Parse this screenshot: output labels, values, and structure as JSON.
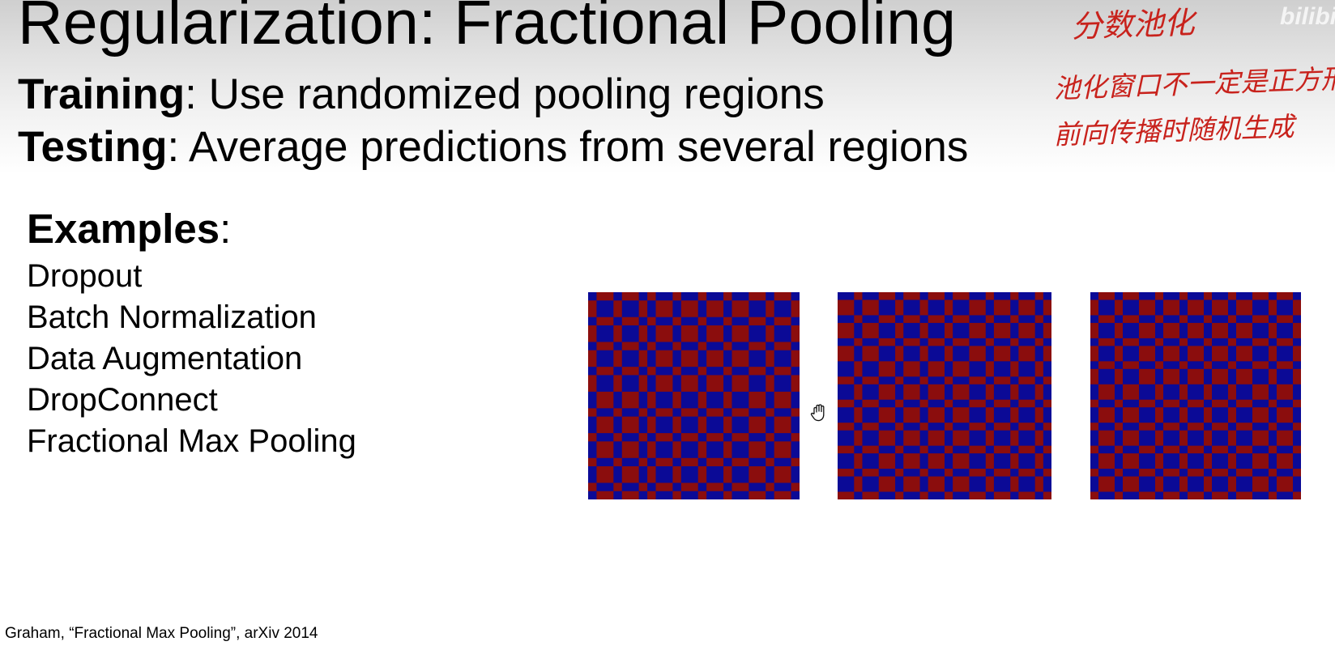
{
  "slide": {
    "title": "Regularization: Fractional Pooling",
    "bullets": [
      {
        "term": "Training",
        "text": ": Use randomized pooling regions"
      },
      {
        "term": "Testing",
        "text": ": Average predictions from several regions"
      }
    ],
    "examples": {
      "heading": "Examples",
      "colon": ":",
      "items": [
        "Dropout",
        "Batch Normalization",
        "Data Augmentation",
        "DropConnect",
        "Fractional Max Pooling"
      ]
    },
    "citation": "Graham, “Fractional Max Pooling”, arXiv 2014"
  },
  "annotations": {
    "line1": "分数池化",
    "line2": "池化窗口不一定是正方形",
    "line3": "前向传播时随机生成"
  },
  "watermark": "bilibili",
  "colors": {
    "grid_red": "#8b0d0d",
    "grid_blue": "#0b0a96",
    "annotation_red": "#c8221c"
  },
  "pooling_grids": [
    {
      "cols": [
        1,
        2,
        1,
        2,
        1,
        1,
        2,
        1,
        2,
        1,
        2,
        1,
        2,
        2,
        1,
        2,
        1
      ],
      "rows": [
        1,
        2,
        1,
        2,
        1,
        2,
        1,
        2,
        2,
        1,
        2,
        1,
        2,
        1,
        2,
        1,
        1
      ]
    },
    {
      "cols": [
        2,
        1,
        2,
        2,
        1,
        2,
        1,
        2,
        1,
        2,
        2,
        1,
        2,
        1,
        2,
        1,
        1
      ],
      "rows": [
        1,
        2,
        1,
        2,
        1,
        2,
        2,
        1,
        2,
        1,
        2,
        1,
        2,
        1,
        2,
        1,
        2,
        1
      ]
    },
    {
      "cols": [
        1,
        2,
        1,
        2,
        2,
        1,
        2,
        1,
        2,
        1,
        2,
        1,
        2,
        2,
        1,
        2,
        1
      ],
      "rows": [
        1,
        2,
        1,
        2,
        1,
        2,
        1,
        2,
        2,
        1,
        2,
        1,
        2,
        1,
        2,
        1,
        2,
        1
      ]
    }
  ]
}
